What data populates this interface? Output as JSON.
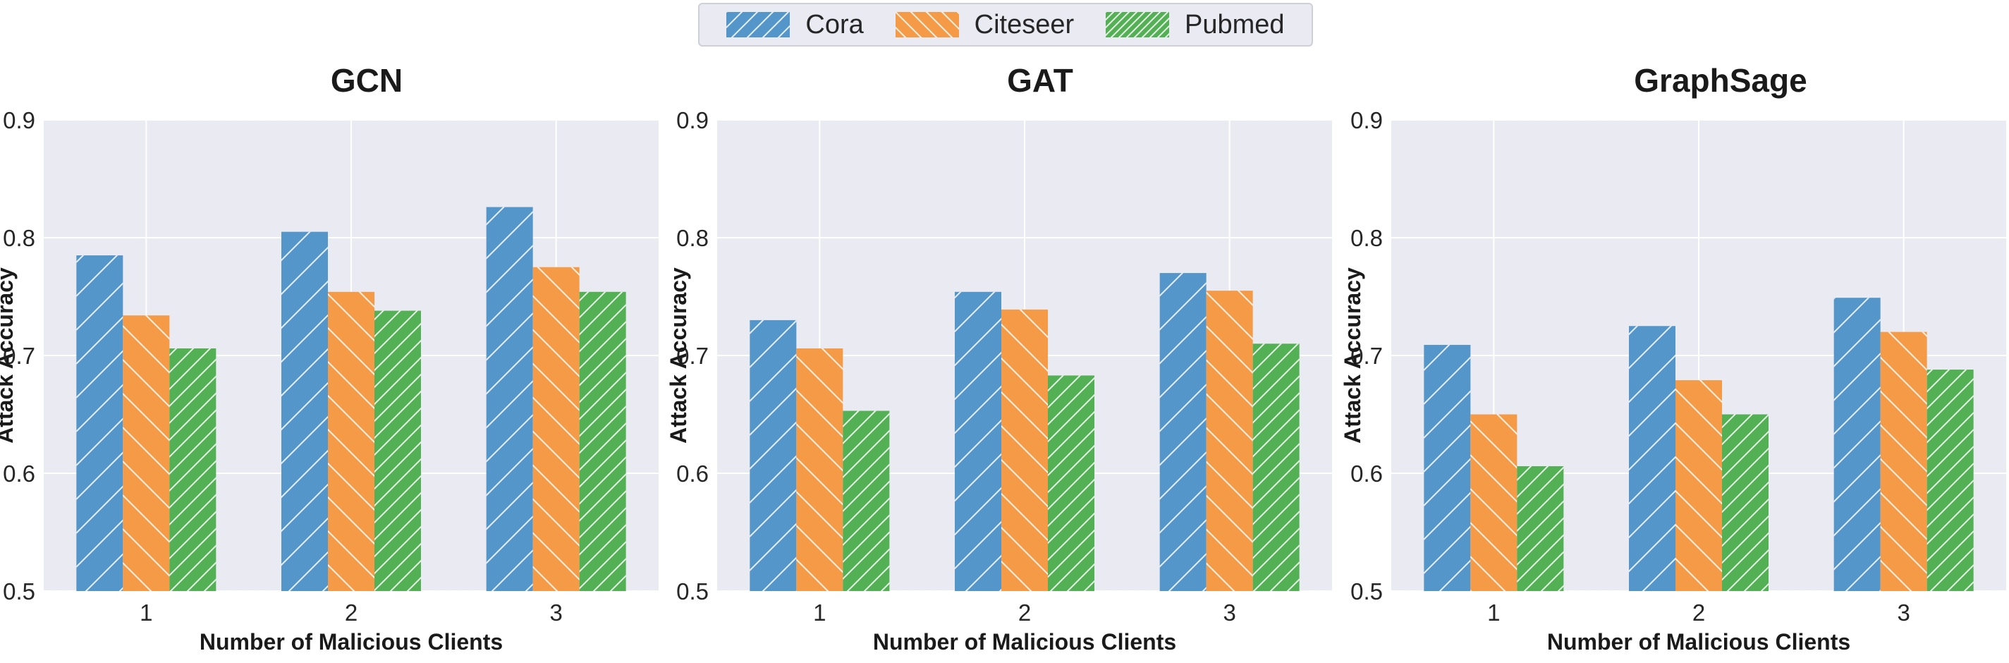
{
  "legend": {
    "entries": [
      {
        "label": "Cora",
        "color": "#5496c9"
      },
      {
        "label": "Citeseer",
        "color": "#f59b47"
      },
      {
        "label": "Pubmed",
        "color": "#54b054"
      }
    ]
  },
  "chart_data": [
    {
      "type": "bar",
      "title": "GCN",
      "xlabel": "Number of Malicious Clients",
      "ylabel": "Attack Accuracy",
      "categories": [
        "1",
        "2",
        "3"
      ],
      "ylim": [
        0.5,
        0.9
      ],
      "yticks": [
        "0.5",
        "0.6",
        "0.7",
        "0.8",
        "0.9"
      ],
      "series": [
        {
          "name": "Cora",
          "values": [
            0.785,
            0.805,
            0.826
          ]
        },
        {
          "name": "Citeseer",
          "values": [
            0.734,
            0.754,
            0.775
          ]
        },
        {
          "name": "Pubmed",
          "values": [
            0.706,
            0.738,
            0.754
          ]
        }
      ]
    },
    {
      "type": "bar",
      "title": "GAT",
      "xlabel": "Number of Malicious Clients",
      "ylabel": "Attack Accuracy",
      "categories": [
        "1",
        "2",
        "3"
      ],
      "ylim": [
        0.5,
        0.9
      ],
      "yticks": [
        "0.5",
        "0.6",
        "0.7",
        "0.8",
        "0.9"
      ],
      "series": [
        {
          "name": "Cora",
          "values": [
            0.73,
            0.754,
            0.77
          ]
        },
        {
          "name": "Citeseer",
          "values": [
            0.706,
            0.739,
            0.755
          ]
        },
        {
          "name": "Pubmed",
          "values": [
            0.653,
            0.683,
            0.71
          ]
        }
      ]
    },
    {
      "type": "bar",
      "title": "GraphSage",
      "xlabel": "Number of Malicious Clients",
      "ylabel": "Attack Accuracy",
      "categories": [
        "1",
        "2",
        "3"
      ],
      "ylim": [
        0.5,
        0.9
      ],
      "yticks": [
        "0.5",
        "0.6",
        "0.7",
        "0.8",
        "0.9"
      ],
      "series": [
        {
          "name": "Cora",
          "values": [
            0.709,
            0.725,
            0.749
          ]
        },
        {
          "name": "Citeseer",
          "values": [
            0.65,
            0.679,
            0.72
          ]
        },
        {
          "name": "Pubmed",
          "values": [
            0.606,
            0.65,
            0.688
          ]
        }
      ]
    }
  ]
}
